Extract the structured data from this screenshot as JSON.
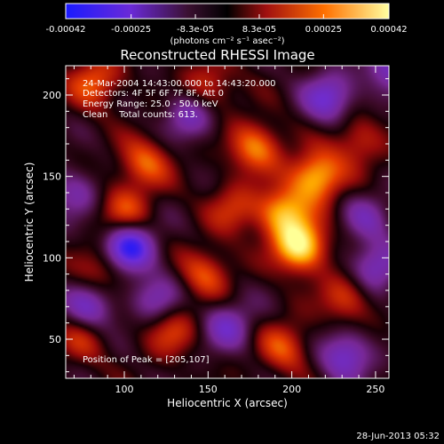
{
  "chart_data": {
    "type": "heatmap",
    "title": "Reconstructed RHESSI Image",
    "xlabel": "Heliocentric X (arcsec)",
    "ylabel": "Heliocentric Y (arcsec)",
    "xlim": [
      65,
      258
    ],
    "ylim": [
      26,
      218
    ],
    "x_ticks": [
      100,
      150,
      200,
      250
    ],
    "y_ticks": [
      50,
      100,
      150,
      200
    ],
    "colorbar": {
      "range": [
        -0.00042,
        0.00042
      ],
      "tick_values": [
        -0.00042,
        -0.00025,
        -8.3e-05,
        8.3e-05,
        0.00025,
        0.00042
      ],
      "tick_labels": [
        "-0.00042",
        "-0.00025",
        "-8.3e-05",
        "8.3e-05",
        "0.00025",
        "0.00042"
      ],
      "units_label": "(photons cm⁻² s⁻¹ asec⁻²)",
      "colors": [
        "#1010ff",
        "#7030d0",
        "#400010",
        "#c01010",
        "#ff8000",
        "#ffff80"
      ]
    },
    "annotations": [
      "24-Mar-2004 14:43:00.000 to 14:43:20.000",
      "Detectors: 4F 5F 6F 7F 8F, Att 0",
      "Energy Range: 25.0 - 50.0 keV",
      "Clean    Total counts: 613."
    ],
    "peak_label": "Position of Peak = [205,107]",
    "peak": [
      205,
      107
    ],
    "blobs": [
      {
        "x": 205,
        "y": 107,
        "v": 1.0
      },
      {
        "x": 215,
        "y": 150,
        "v": 0.85
      },
      {
        "x": 195,
        "y": 128,
        "v": 0.75
      },
      {
        "x": 178,
        "y": 168,
        "v": 0.65
      },
      {
        "x": 112,
        "y": 158,
        "v": 0.55
      },
      {
        "x": 82,
        "y": 208,
        "v": 0.55
      },
      {
        "x": 100,
        "y": 128,
        "v": 0.5
      },
      {
        "x": 88,
        "y": 93,
        "v": 0.45
      },
      {
        "x": 150,
        "y": 205,
        "v": 0.45
      },
      {
        "x": 148,
        "y": 90,
        "v": 0.5
      },
      {
        "x": 128,
        "y": 55,
        "v": 0.45
      },
      {
        "x": 195,
        "y": 45,
        "v": 0.5
      },
      {
        "x": 232,
        "y": 75,
        "v": 0.45
      },
      {
        "x": 240,
        "y": 172,
        "v": 0.4
      },
      {
        "x": 165,
        "y": 130,
        "v": 0.4
      },
      {
        "x": 75,
        "y": 50,
        "v": 0.35
      },
      {
        "x": 102,
        "y": 106,
        "v": -1.0
      },
      {
        "x": 222,
        "y": 198,
        "v": -0.6
      },
      {
        "x": 140,
        "y": 188,
        "v": -0.5
      },
      {
        "x": 80,
        "y": 70,
        "v": -0.55
      },
      {
        "x": 250,
        "y": 95,
        "v": -0.55
      },
      {
        "x": 162,
        "y": 58,
        "v": -0.5
      },
      {
        "x": 232,
        "y": 40,
        "v": -0.6
      },
      {
        "x": 258,
        "y": 215,
        "v": -0.5
      },
      {
        "x": 120,
        "y": 75,
        "v": -0.45
      },
      {
        "x": 70,
        "y": 140,
        "v": -0.4
      },
      {
        "x": 245,
        "y": 125,
        "v": -0.35
      }
    ]
  },
  "footer": {
    "date": "28-Jun-2013 05:32"
  }
}
